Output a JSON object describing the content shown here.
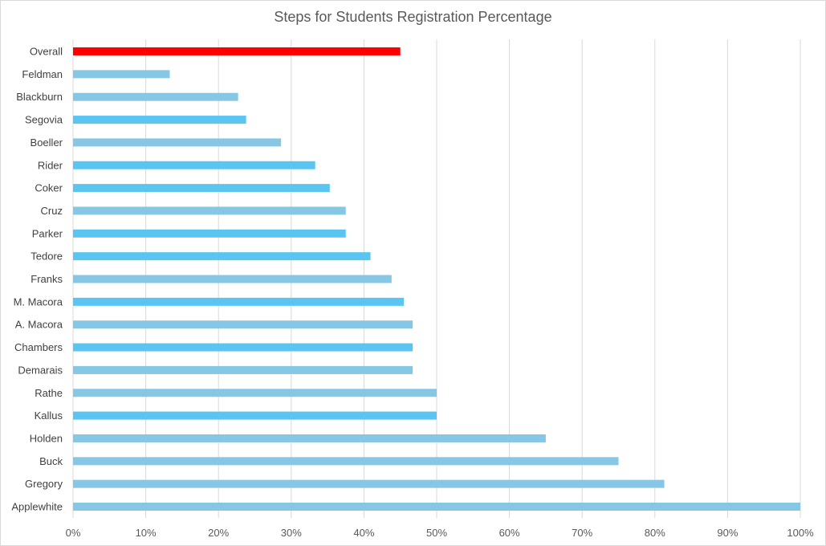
{
  "chart_data": {
    "type": "bar",
    "orientation": "horizontal",
    "title": "Steps for Students Registration Percentage",
    "xlabel": "",
    "ylabel": "",
    "xlim": [
      0,
      100
    ],
    "x_ticks": [
      0,
      10,
      20,
      30,
      40,
      50,
      60,
      70,
      80,
      90,
      100
    ],
    "x_tick_labels": [
      "0%",
      "10%",
      "20%",
      "30%",
      "40%",
      "50%",
      "60%",
      "70%",
      "80%",
      "90%",
      "100%"
    ],
    "grid": "vertical",
    "legend": "none",
    "categories": [
      "Overall",
      "Feldman",
      "Blackburn",
      "Segovia",
      "Boeller",
      "Rider",
      "Coker",
      "Cruz",
      "Parker",
      "Tedore",
      "Franks",
      "M. Macora",
      "A. Macora",
      "Chambers",
      "Demarais",
      "Rathe",
      "Kallus",
      "Holden",
      "Buck",
      "Gregory",
      "Applewhite"
    ],
    "values": [
      45,
      13.3,
      22.7,
      23.8,
      28.6,
      33.3,
      35.3,
      37.5,
      37.5,
      40.9,
      43.8,
      45.5,
      46.7,
      46.7,
      46.7,
      50,
      50,
      65,
      75,
      81.3,
      100
    ],
    "colors": [
      "#ff0000",
      "#87c7e6",
      "#87c7e6",
      "#5bc5f2",
      "#87c7e6",
      "#5bc5f2",
      "#5bc5f2",
      "#87c7e6",
      "#5bc5f2",
      "#5bc5f2",
      "#87c7e6",
      "#5bc5f2",
      "#87c7e6",
      "#5bc5f2",
      "#87c7e6",
      "#87c7e6",
      "#5bc5f2",
      "#87c7e6",
      "#87c7e6",
      "#87c7e6",
      "#87c7e6"
    ],
    "gridline_color": "#d9d9d9"
  }
}
